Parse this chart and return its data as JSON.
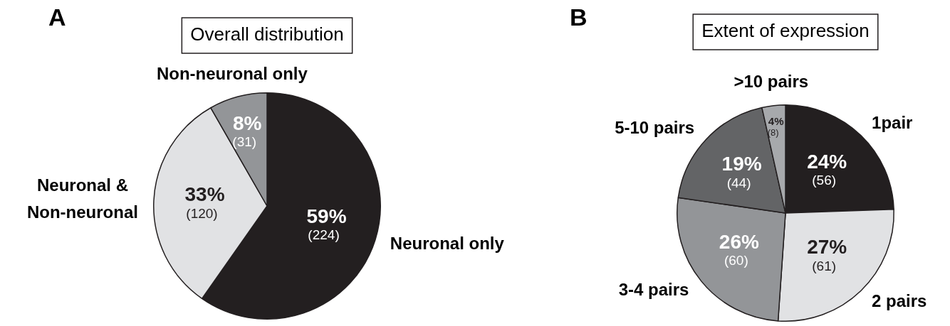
{
  "chart_data": [
    {
      "type": "pie",
      "title": "Overall distribution",
      "annotations": [
        "A"
      ],
      "categories": [
        "Neuronal only",
        "Neuronal & Non-neuronal",
        "Non-neuronal only"
      ],
      "values": [
        224,
        120,
        31
      ],
      "colors": [
        "#231f20",
        "#e1e2e4",
        "#939598"
      ],
      "value_labels": [
        "59%\n(224)",
        "33%\n(120)",
        "8%\n(31)"
      ],
      "legend": false
    },
    {
      "type": "pie",
      "title": "Extent of expression",
      "annotations": [
        "B"
      ],
      "categories": [
        "1pair",
        "2 pairs",
        "3-4 pairs",
        "5-10 pairs",
        ">10 pairs"
      ],
      "values": [
        56,
        61,
        60,
        44,
        8
      ],
      "colors": [
        "#231f20",
        "#e1e2e4",
        "#939598",
        "#636466",
        "#a7a9ac"
      ],
      "value_labels": [
        "24%\n(56)",
        "27%\n(61)",
        "26%\n(60)",
        "19%\n(44)",
        "4%\n(8)"
      ],
      "legend": false
    }
  ]
}
